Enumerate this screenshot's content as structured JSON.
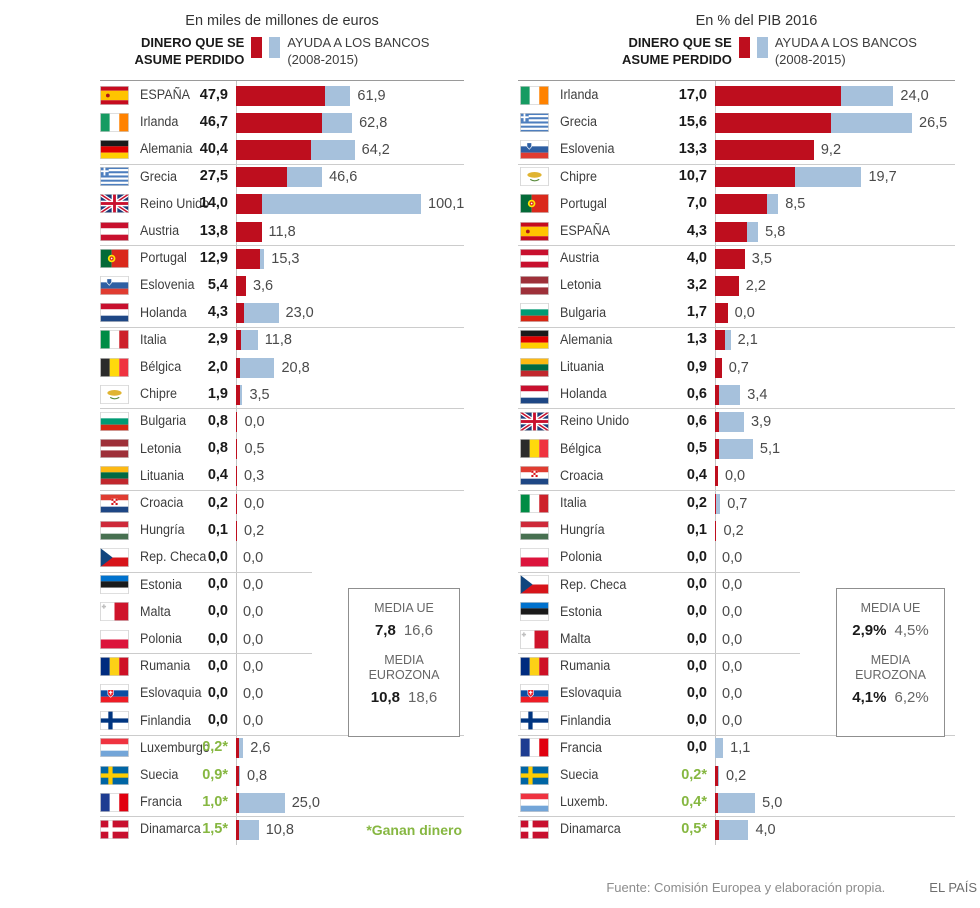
{
  "colors": {
    "lost": "#BE0E1E",
    "aid": "#A6C1DC",
    "gain_text": "#86B741"
  },
  "footer": {
    "source": "Fuente: Comisión Europea y elaboración propia.",
    "brand": "EL PAÍS"
  },
  "chart_data": [
    {
      "type": "bar",
      "orientation": "horizontal",
      "title": "En miles de millones de euros",
      "legend": {
        "lost_line1": "DINERO QUE SE",
        "lost_line2": "ASUME PERDIDO",
        "aid_line1": "AYUDA A LOS BANCOS",
        "aid_line2": "(2008-2015)"
      },
      "xlim": [
        0,
        100.1
      ],
      "categories": [
        "ESPAÑA",
        "Irlanda",
        "Alemania",
        "Grecia",
        "Reino Unido",
        "Austria",
        "Portugal",
        "Eslovenia",
        "Holanda",
        "Italia",
        "Bélgica",
        "Chipre",
        "Bulgaria",
        "Letonia",
        "Lituania",
        "Croacia",
        "Hungría",
        "Rep. Checa",
        "Estonia",
        "Malta",
        "Polonia",
        "Rumania",
        "Eslovaquia",
        "Finlandia",
        "Luxemburgo",
        "Suecia",
        "Francia",
        "Dinamarca"
      ],
      "flags": [
        "es",
        "ie",
        "de",
        "gr",
        "gb",
        "at",
        "pt",
        "si",
        "nl",
        "it",
        "be",
        "cy",
        "bg",
        "lv",
        "lt",
        "hr",
        "hu",
        "cz",
        "ee",
        "mt",
        "pl",
        "ro",
        "sk",
        "fi",
        "lu",
        "se",
        "fr",
        "dk"
      ],
      "series": [
        {
          "name": "DINERO QUE SE ASUME PERDIDO",
          "values": [
            47.9,
            46.7,
            40.4,
            27.5,
            14.0,
            13.8,
            12.9,
            5.4,
            4.3,
            2.9,
            2.0,
            1.9,
            0.8,
            0.8,
            0.4,
            0.2,
            0.1,
            0.0,
            0.0,
            0.0,
            0.0,
            0.0,
            0.0,
            0.0,
            0.2,
            0.9,
            1.0,
            1.5
          ]
        },
        {
          "name": "AYUDA A LOS BANCOS (2008-2015)",
          "values": [
            61.9,
            62.8,
            64.2,
            46.6,
            100.1,
            11.8,
            15.3,
            3.6,
            23.0,
            11.8,
            20.8,
            3.5,
            0.0,
            0.5,
            0.3,
            0.0,
            0.2,
            0.0,
            0.0,
            0.0,
            0.0,
            0.0,
            0.0,
            0.0,
            2.6,
            0.8,
            25.0,
            10.8
          ]
        }
      ],
      "lost_labels": [
        "47,9",
        "46,7",
        "40,4",
        "27,5",
        "14,0",
        "13,8",
        "12,9",
        "5,4",
        "4,3",
        "2,9",
        "2,0",
        "1,9",
        "0,8",
        "0,8",
        "0,4",
        "0,2",
        "0,1",
        "0,0",
        "0,0",
        "0,0",
        "0,0",
        "0,0",
        "0,0",
        "0,0",
        "0,2*",
        "0,9*",
        "1,0*",
        "1,5*"
      ],
      "aid_labels": [
        "61,9",
        "62,8",
        "64,2",
        "46,6",
        "100,1",
        "11,8",
        "15,3",
        "3,6",
        "23,0",
        "11,8",
        "20,8",
        "3,5",
        "0,0",
        "0,5",
        "0,3",
        "0,0",
        "0,2",
        "0,0",
        "0,0",
        "0,0",
        "0,0",
        "0,0",
        "0,0",
        "0,0",
        "2,6",
        "0,8",
        "25,0",
        "10,8"
      ],
      "gains": [
        24,
        25,
        26,
        27
      ],
      "summary": {
        "media_ue": {
          "label": "MEDIA UE",
          "lost": "7,8",
          "aid": "16,6"
        },
        "media_eurozona": {
          "label": "MEDIA EUROZONA",
          "lost": "10,8",
          "aid": "18,6"
        }
      },
      "footnote": "*Ganan dinero"
    },
    {
      "type": "bar",
      "orientation": "horizontal",
      "title": "En % del PIB 2016",
      "legend": {
        "lost_line1": "DINERO QUE SE",
        "lost_line2": "ASUME PERDIDO",
        "aid_line1": "AYUDA A LOS BANCOS",
        "aid_line2": "(2008-2015)"
      },
      "xlim": [
        0,
        26.5
      ],
      "categories": [
        "Irlanda",
        "Grecia",
        "Eslovenia",
        "Chipre",
        "Portugal",
        "ESPAÑA",
        "Austria",
        "Letonia",
        "Bulgaria",
        "Alemania",
        "Lituania",
        "Holanda",
        "Reino Unido",
        "Bélgica",
        "Croacia",
        "Italia",
        "Hungría",
        "Polonia",
        "Rep. Checa",
        "Estonia",
        "Malta",
        "Rumania",
        "Eslovaquia",
        "Finlandia",
        "Francia",
        "Suecia",
        "Luxemb.",
        "Dinamarca"
      ],
      "flags": [
        "ie",
        "gr",
        "si",
        "cy",
        "pt",
        "es",
        "at",
        "lv",
        "bg",
        "de",
        "lt",
        "nl",
        "gb",
        "be",
        "hr",
        "it",
        "hu",
        "pl",
        "cz",
        "ee",
        "mt",
        "ro",
        "sk",
        "fi",
        "fr",
        "se",
        "lu",
        "dk"
      ],
      "series": [
        {
          "name": "DINERO QUE SE ASUME PERDIDO",
          "values": [
            17.0,
            15.6,
            13.3,
            10.7,
            7.0,
            4.3,
            4.0,
            3.2,
            1.7,
            1.3,
            0.9,
            0.6,
            0.6,
            0.5,
            0.4,
            0.2,
            0.1,
            0.0,
            0.0,
            0.0,
            0.0,
            0.0,
            0.0,
            0.0,
            0.0,
            0.2,
            0.4,
            0.5
          ]
        },
        {
          "name": "AYUDA A LOS BANCOS (2008-2015)",
          "values": [
            24.0,
            26.5,
            9.2,
            19.7,
            8.5,
            5.8,
            3.5,
            2.2,
            0.0,
            2.1,
            0.7,
            3.4,
            3.9,
            5.1,
            0.0,
            0.7,
            0.2,
            0.0,
            0.0,
            0.0,
            0.0,
            0.0,
            0.0,
            0.0,
            1.1,
            0.2,
            5.0,
            4.0
          ]
        }
      ],
      "lost_labels": [
        "17,0",
        "15,6",
        "13,3",
        "10,7",
        "7,0",
        "4,3",
        "4,0",
        "3,2",
        "1,7",
        "1,3",
        "0,9",
        "0,6",
        "0,6",
        "0,5",
        "0,4",
        "0,2",
        "0,1",
        "0,0",
        "0,0",
        "0,0",
        "0,0",
        "0,0",
        "0,0",
        "0,0",
        "0,0",
        "0,2*",
        "0,4*",
        "0,5*"
      ],
      "aid_labels": [
        "24,0",
        "26,5",
        "9,2",
        "19,7",
        "8,5",
        "5,8",
        "3,5",
        "2,2",
        "0,0",
        "2,1",
        "0,7",
        "3,4",
        "3,9",
        "5,1",
        "0,0",
        "0,7",
        "0,2",
        "0,0",
        "0,0",
        "0,0",
        "0,0",
        "0,0",
        "0,0",
        "0,0",
        "1,1",
        "0,2",
        "5,0",
        "4,0"
      ],
      "gains": [
        25,
        26,
        27
      ],
      "summary": {
        "media_ue": {
          "label": "MEDIA UE",
          "lost": "2,9%",
          "aid": "4,5%"
        },
        "media_eurozona": {
          "label": "MEDIA EUROZONA",
          "lost": "4,1%",
          "aid": "6,2%"
        }
      },
      "footnote": ""
    }
  ]
}
